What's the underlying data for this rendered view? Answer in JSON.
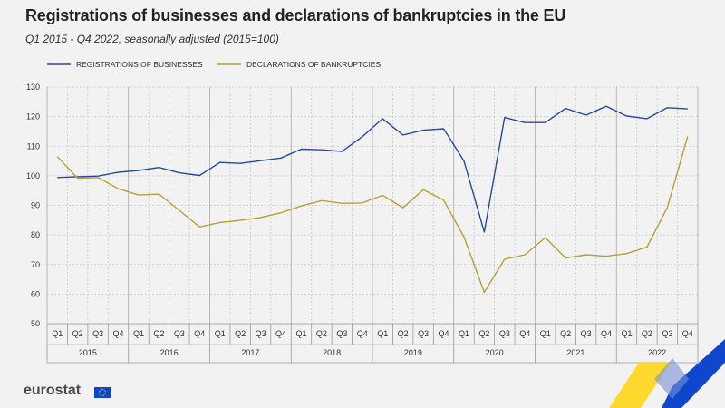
{
  "title": "Registrations of businesses and declarations of bankruptcies in the EU",
  "subtitle": "Q1 2015 - Q4 2022, seasonally adjusted  (2015=100)",
  "logo_text": "eurostat",
  "colors": {
    "registrations": "#2a4aa0",
    "bankruptcies": "#b8a03a",
    "grid": "#c8c8c8",
    "brand_blue": "#0e47cb",
    "brand_yellow": "#ffd617"
  },
  "chart_data": {
    "type": "line",
    "quarters": [
      "Q1",
      "Q2",
      "Q3",
      "Q4",
      "Q1",
      "Q2",
      "Q3",
      "Q4",
      "Q1",
      "Q2",
      "Q3",
      "Q4",
      "Q1",
      "Q2",
      "Q3",
      "Q4",
      "Q1",
      "Q2",
      "Q3",
      "Q4",
      "Q1",
      "Q2",
      "Q3",
      "Q4",
      "Q1",
      "Q2",
      "Q3",
      "Q4",
      "Q1",
      "Q2",
      "Q3",
      "Q4"
    ],
    "years": [
      "2015",
      "2016",
      "2017",
      "2018",
      "2019",
      "2020",
      "2021",
      "2022"
    ],
    "ylim": [
      50,
      130
    ],
    "yticks": [
      50,
      60,
      70,
      80,
      90,
      100,
      110,
      120,
      130
    ],
    "grid": true,
    "legend_position": "top",
    "series": [
      {
        "name": "REGISTRATIONS OF BUSINESSES",
        "values": [
          99.4,
          99.7,
          99.9,
          101.2,
          101.8,
          102.8,
          101.0,
          100.1,
          104.5,
          104.2,
          105.1,
          106.0,
          109.0,
          108.8,
          108.2,
          113.2,
          119.3,
          113.8,
          115.4,
          115.9,
          105.0,
          81.0,
          119.7,
          118.0,
          118.0,
          122.8,
          120.5,
          123.5,
          120.2,
          119.3,
          123.0,
          122.6
        ]
      },
      {
        "name": "DECLARATIONS OF BANKRUPTCIES",
        "values": [
          106.5,
          99.2,
          99.4,
          95.6,
          93.5,
          93.8,
          88.3,
          82.7,
          84.2,
          84.9,
          85.9,
          87.5,
          89.8,
          91.6,
          90.7,
          90.8,
          93.4,
          89.2,
          95.3,
          91.8,
          79.3,
          60.6,
          71.8,
          73.3,
          79.1,
          72.2,
          73.3,
          72.8,
          73.7,
          75.9,
          89.2,
          113.3
        ]
      }
    ]
  }
}
